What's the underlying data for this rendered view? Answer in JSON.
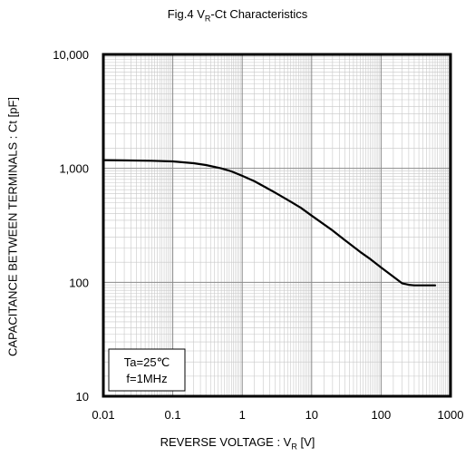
{
  "chart_data": {
    "type": "line",
    "title_prefix": "Fig.4 V",
    "title_sub": "R",
    "title_suffix": "-Ct Characteristics",
    "xlabel_prefix": "REVERSE VOLTAGE : V",
    "xlabel_sub": "R",
    "xlabel_suffix": " [V]",
    "ylabel": "CAPACITANCE BETWEEN TERMINALS : Ct [pF]",
    "x_scale": "log",
    "y_scale": "log",
    "xlim": [
      0.01,
      1000
    ],
    "ylim": [
      10,
      10000
    ],
    "x_tick_values": [
      0.01,
      0.1,
      1,
      10,
      100,
      1000
    ],
    "x_tick_labels": [
      "0.01",
      "0.1",
      "1",
      "10",
      "100",
      "1000"
    ],
    "y_tick_values": [
      10,
      100,
      1000,
      10000
    ],
    "y_tick_labels": [
      "10",
      "100",
      "1,000",
      "10,000"
    ],
    "grid": true,
    "series": [
      {
        "color": "#000000",
        "x": [
          0.01,
          0.02,
          0.05,
          0.1,
          0.2,
          0.3,
          0.5,
          0.7,
          1,
          1.5,
          2,
          3,
          5,
          7,
          10,
          20,
          30,
          50,
          70,
          100,
          150,
          200,
          250,
          300,
          400,
          600
        ],
        "y": [
          1180,
          1175,
          1165,
          1150,
          1110,
          1070,
          1000,
          940,
          860,
          770,
          700,
          610,
          510,
          450,
          385,
          285,
          235,
          185,
          160,
          135,
          112,
          98,
          95,
          94,
          94,
          94
        ]
      }
    ],
    "annotation_lines": [
      "Ta=25℃",
      "f=1MHz"
    ],
    "annotation_position": "bottom-left"
  }
}
